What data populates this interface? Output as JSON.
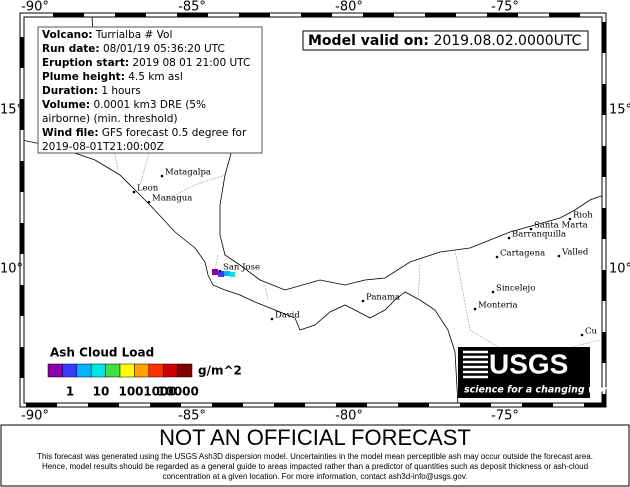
{
  "map": {
    "lon_labels": [
      "-90°",
      "-85°",
      "-80°",
      "-75°"
    ],
    "lat_labels": [
      "15°",
      "10°"
    ],
    "places": [
      "Matagalpa",
      "Leon",
      "Managua",
      "San Jose",
      "David",
      "Panama",
      "Cartagena",
      "Barranquilla",
      "Santa Marta",
      "Rioh",
      "Valled",
      "Sincelejo",
      "Monteria",
      "Cu"
    ]
  },
  "info": [
    {
      "label": "Volcano:",
      "value": "Turrialba # Vol"
    },
    {
      "label": "Run date:",
      "value": "08/01/19 05:36:20 UTC"
    },
    {
      "label": "Eruption start:",
      "value": "2019 08 01 21:00 UTC"
    },
    {
      "label": "Plume height:",
      "value": "4.5  km asl"
    },
    {
      "label": "Duration:",
      "value": "1  hours"
    },
    {
      "label": "Volume:",
      "value": "0.0001 km3 DRE (5%"
    },
    {
      "value": "airborne) (min. threshold)"
    },
    {
      "label": "Wind file:",
      "value": "GFS forecast 0.5 degree for"
    },
    {
      "value": "2019-08-01T21:00:00Z"
    }
  ],
  "valid": {
    "label": "Model valid on:",
    "value": "2019.08.02.0000UTC"
  },
  "legend": {
    "title": "Ash Cloud Load",
    "unit": "g/m^2",
    "ticks": [
      "1",
      "10",
      "100",
      "1000",
      "10000"
    ],
    "colors": [
      "#8b00a8",
      "#3a3aff",
      "#00b4ff",
      "#00e5e5",
      "#40e040",
      "#ffff00",
      "#ffa000",
      "#ff3000",
      "#d00000",
      "#800000"
    ]
  },
  "logo": {
    "text": "USGS",
    "tagline": "science for a changing world"
  },
  "footer": {
    "title": "NOT AN OFFICIAL FORECAST",
    "lines": [
      "This forecast was generated using the USGS Ash3D dispersion model. Uncertainties in the model mean perceptible ash may occur outside the forecast area.",
      "Hence, model results should be regarded as a general guide to areas impacted rather than a predictor of quantities such as deposit thickness or ash-cloud",
      "concentration at a given location.  For more information, contact ash3d-info@usgs.gov."
    ]
  }
}
